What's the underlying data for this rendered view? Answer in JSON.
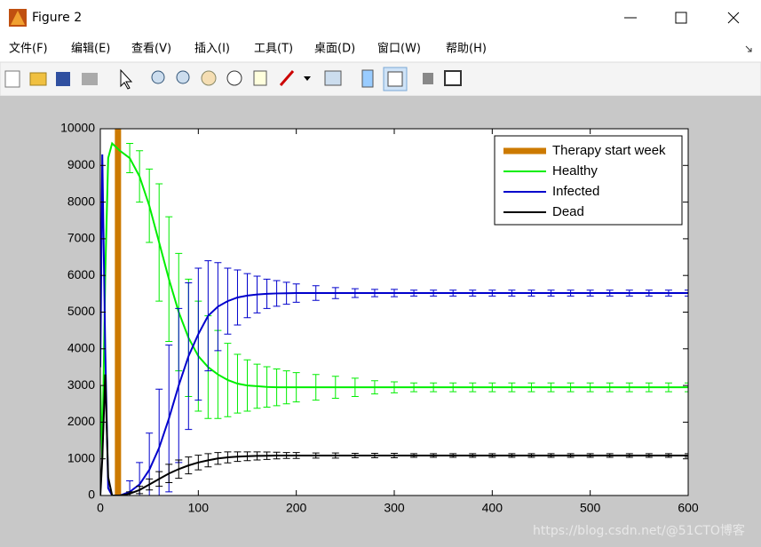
{
  "window": {
    "title": "Figure 2",
    "menu": [
      "文件(F)",
      "编辑(E)",
      "查看(V)",
      "插入(I)",
      "工具(T)",
      "桌面(D)",
      "窗口(W)",
      "帮助(H)"
    ]
  },
  "chart_data": {
    "type": "errorbar-line",
    "xlim": [
      0,
      600
    ],
    "xticks": [
      0,
      100,
      200,
      300,
      400,
      500,
      600
    ],
    "ylim": [
      0,
      10000
    ],
    "yticks": [
      0,
      1000,
      2000,
      3000,
      4000,
      5000,
      6000,
      7000,
      8000,
      9000,
      10000
    ],
    "legend": "upper right",
    "series": [
      {
        "name": "Therapy start week",
        "color": "#cc7a00",
        "x": [
          18,
          18
        ],
        "values": [
          0,
          10000
        ]
      },
      {
        "name": "Healthy",
        "color": "#00ee00",
        "x": [
          0,
          2,
          5,
          8,
          12,
          16,
          20,
          30,
          40,
          50,
          60,
          70,
          80,
          90,
          100,
          110,
          120,
          130,
          140,
          150,
          160,
          170,
          180,
          190,
          200,
          220,
          240,
          260,
          280,
          300,
          320,
          340,
          360,
          380,
          400,
          420,
          440,
          460,
          480,
          500,
          520,
          540,
          560,
          580,
          600
        ],
        "values": [
          3000,
          1000,
          6000,
          9200,
          9600,
          9500,
          9400,
          9200,
          8700,
          7900,
          6900,
          5900,
          5000,
          4300,
          3800,
          3500,
          3300,
          3150,
          3050,
          3000,
          2980,
          2960,
          2950,
          2950,
          2950,
          2950,
          2950,
          2950,
          2950,
          2950,
          2950,
          2950,
          2950,
          2950,
          2950,
          2950,
          2950,
          2950,
          2950,
          2950,
          2950,
          2950,
          2950,
          2950,
          2950
        ],
        "errors": [
          null,
          null,
          null,
          null,
          null,
          null,
          null,
          400,
          700,
          1000,
          1600,
          1700,
          1600,
          1600,
          1500,
          1400,
          1200,
          1000,
          800,
          700,
          600,
          550,
          500,
          450,
          400,
          350,
          300,
          250,
          180,
          150,
          120,
          120,
          120,
          120,
          120,
          120,
          120,
          120,
          120,
          120,
          120,
          120,
          120,
          120,
          120
        ]
      },
      {
        "name": "Infected",
        "color": "#0000cc",
        "x": [
          0,
          2,
          5,
          8,
          12,
          16,
          20,
          30,
          40,
          50,
          60,
          70,
          80,
          90,
          100,
          110,
          120,
          130,
          140,
          150,
          160,
          170,
          180,
          190,
          200,
          220,
          240,
          260,
          280,
          300,
          320,
          340,
          360,
          380,
          400,
          420,
          440,
          460,
          480,
          500,
          520,
          540,
          560,
          580,
          600
        ],
        "values": [
          3500,
          9300,
          4000,
          200,
          0,
          0,
          0,
          100,
          300,
          700,
          1300,
          2100,
          3000,
          3800,
          4400,
          4900,
          5150,
          5300,
          5400,
          5450,
          5480,
          5500,
          5510,
          5515,
          5520,
          5520,
          5520,
          5520,
          5520,
          5520,
          5520,
          5520,
          5520,
          5520,
          5520,
          5520,
          5520,
          5520,
          5520,
          5520,
          5520,
          5520,
          5520,
          5520,
          5520
        ],
        "errors": [
          null,
          null,
          null,
          null,
          null,
          null,
          null,
          300,
          600,
          1000,
          1600,
          2000,
          2100,
          2000,
          1800,
          1500,
          1200,
          900,
          750,
          600,
          500,
          400,
          350,
          300,
          250,
          200,
          150,
          120,
          100,
          100,
          80,
          80,
          80,
          80,
          80,
          80,
          80,
          80,
          80,
          80,
          80,
          80,
          80,
          80,
          80
        ]
      },
      {
        "name": "Dead",
        "color": "#000000",
        "x": [
          0,
          2,
          5,
          8,
          12,
          16,
          20,
          30,
          40,
          50,
          60,
          70,
          80,
          90,
          100,
          110,
          120,
          130,
          140,
          150,
          160,
          170,
          180,
          190,
          200,
          220,
          240,
          260,
          280,
          300,
          320,
          340,
          360,
          380,
          400,
          420,
          440,
          460,
          480,
          500,
          520,
          540,
          560,
          580,
          600
        ],
        "values": [
          0,
          1000,
          3300,
          500,
          0,
          0,
          0,
          50,
          150,
          300,
          450,
          600,
          720,
          820,
          900,
          960,
          1010,
          1040,
          1060,
          1070,
          1080,
          1085,
          1090,
          1090,
          1090,
          1090,
          1090,
          1090,
          1090,
          1090,
          1090,
          1090,
          1090,
          1090,
          1090,
          1090,
          1090,
          1090,
          1090,
          1090,
          1090,
          1090,
          1090,
          1090,
          1090
        ],
        "errors": [
          null,
          null,
          null,
          null,
          null,
          null,
          null,
          50,
          100,
          150,
          200,
          250,
          250,
          230,
          200,
          180,
          160,
          150,
          130,
          120,
          110,
          100,
          90,
          80,
          80,
          70,
          70,
          60,
          60,
          60,
          50,
          50,
          50,
          50,
          50,
          50,
          50,
          50,
          50,
          50,
          50,
          50,
          50,
          50,
          50
        ]
      }
    ]
  },
  "watermark": "https://blog.csdn.net/@51CTO博客"
}
